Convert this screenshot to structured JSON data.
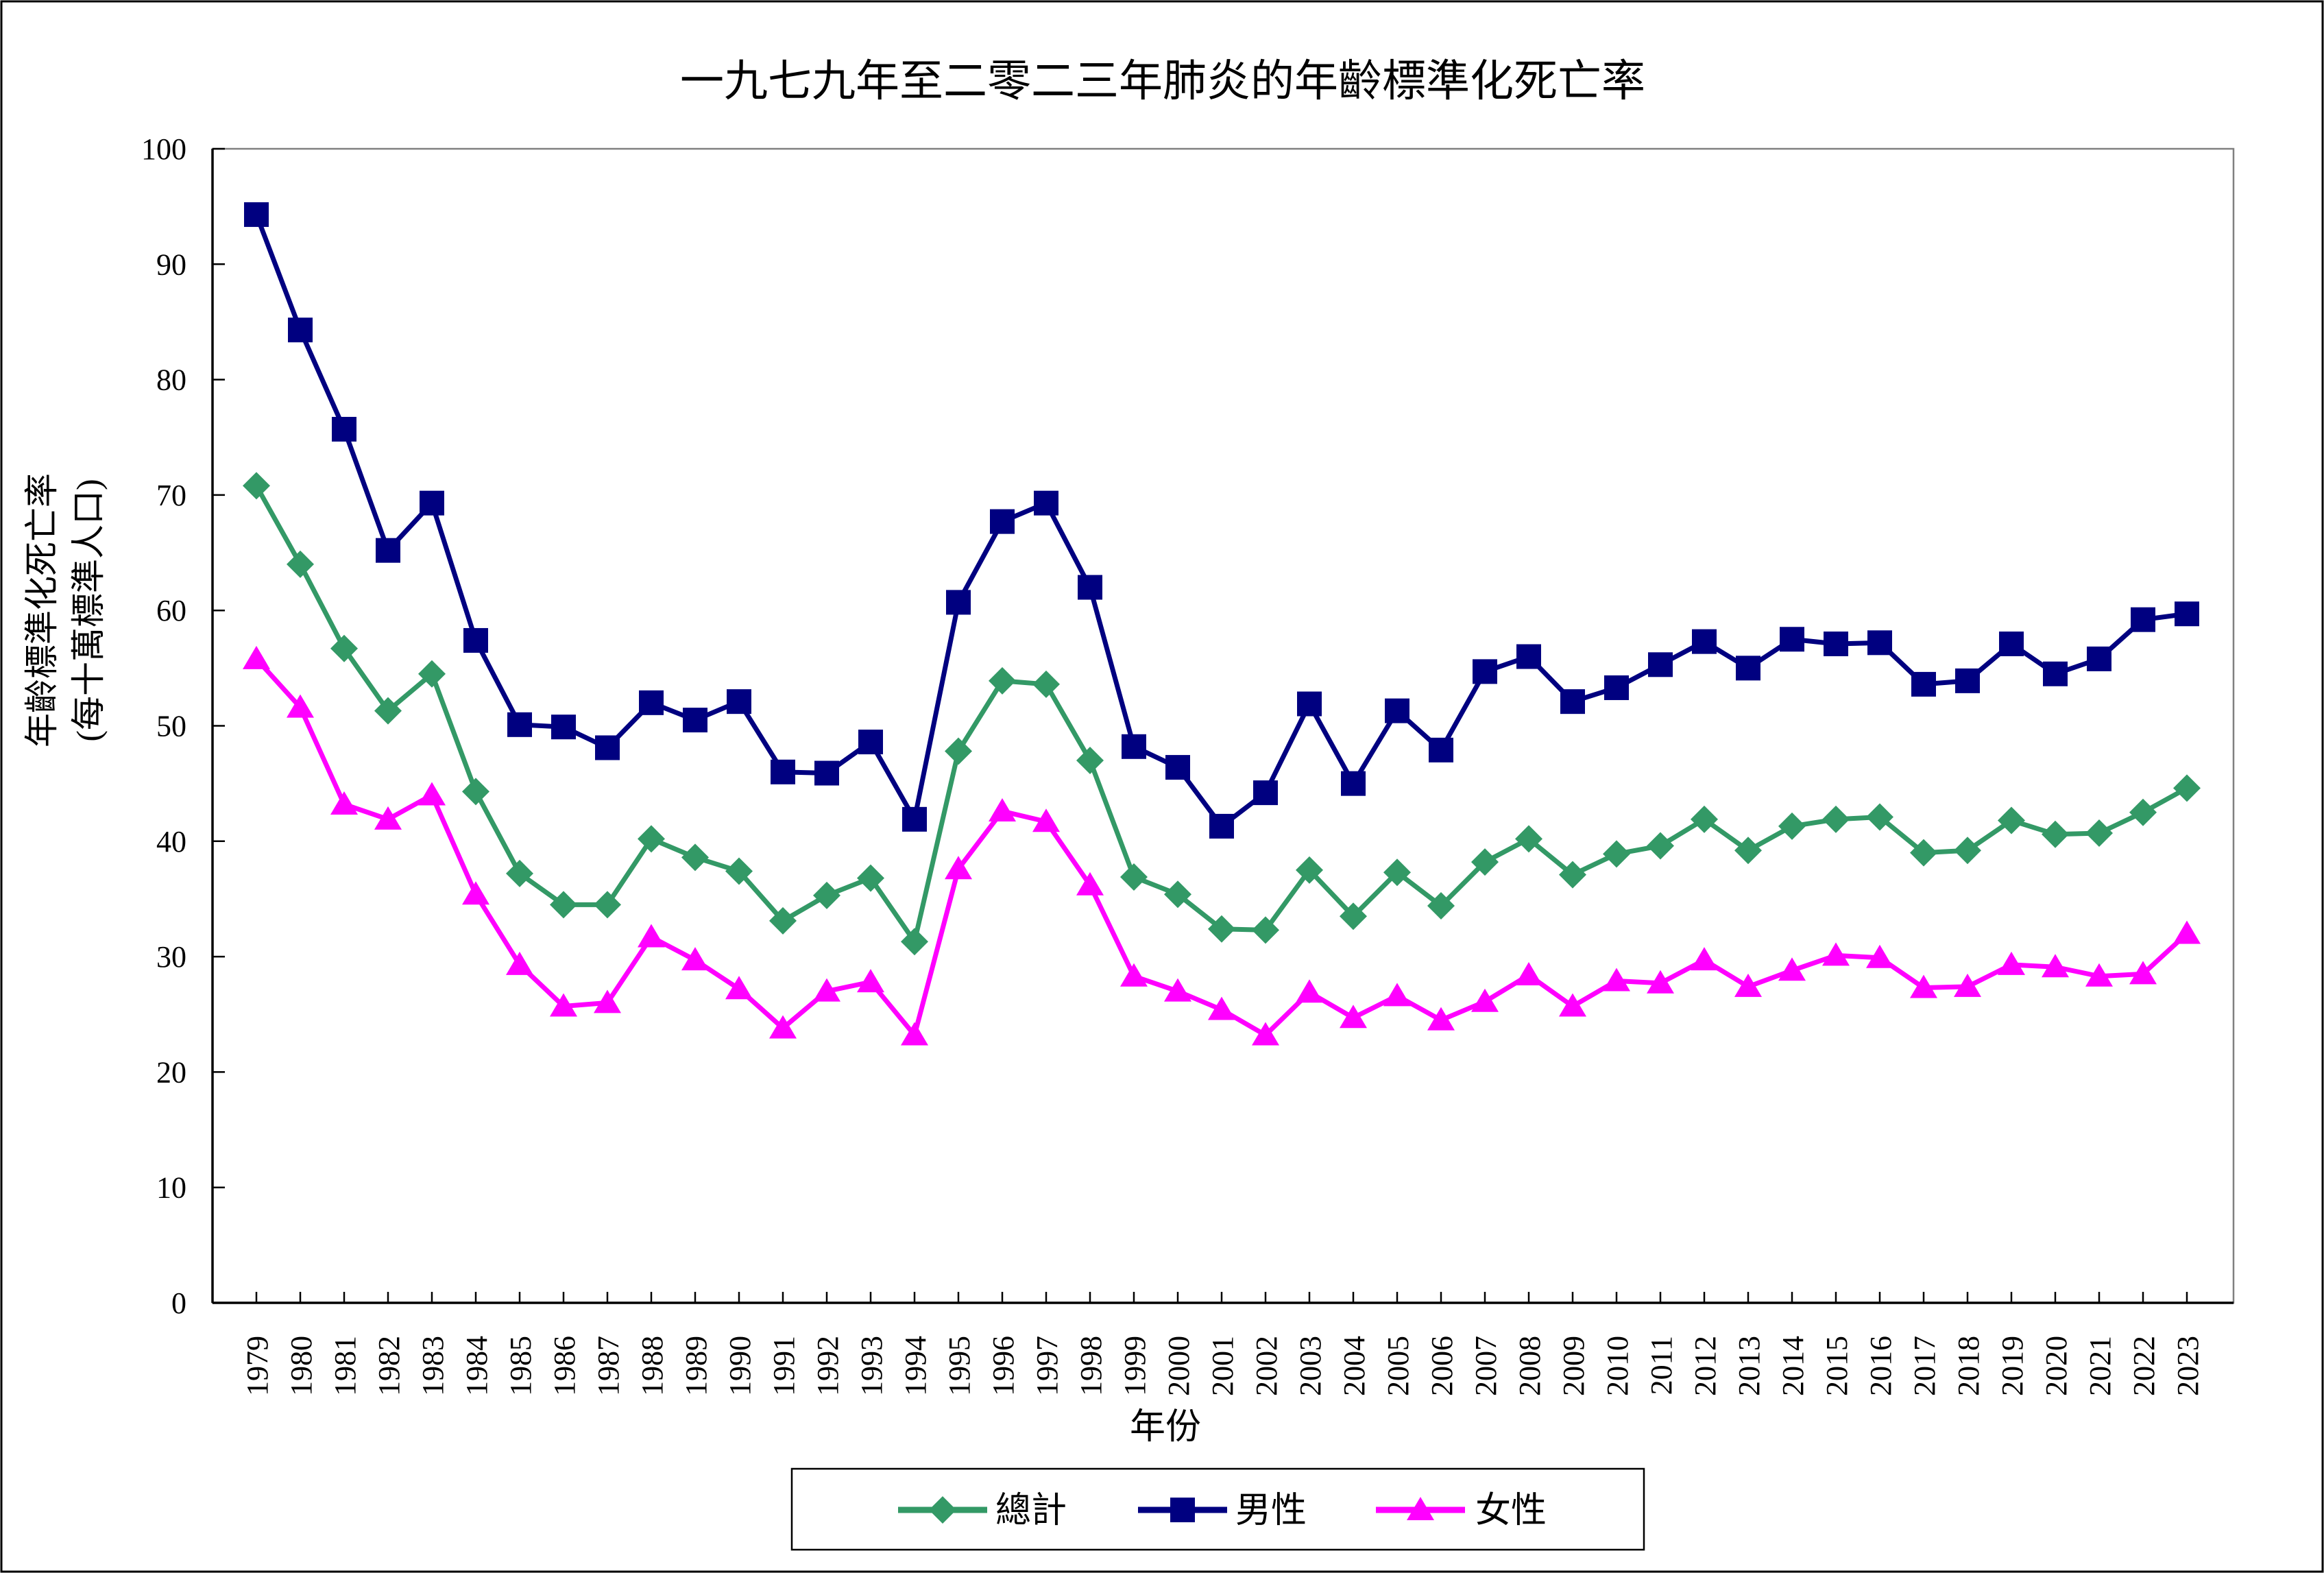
{
  "title": "一九七九年至二零二三年肺炎的年齡標準化死亡率",
  "y_axis": {
    "title_line1": "年齡標準化死亡率",
    "title_line2": "(每十萬標準人口)",
    "min": 0,
    "max": 100,
    "tick_interval": 10,
    "tick_labels": [
      "0",
      "10",
      "20",
      "30",
      "40",
      "50",
      "60",
      "70",
      "80",
      "90",
      "100"
    ]
  },
  "x_axis": {
    "title": "年份"
  },
  "legend": {
    "items": [
      {
        "label": "總計"
      },
      {
        "label": "男性"
      },
      {
        "label": "女性"
      }
    ]
  },
  "colors": {
    "total": "#339966",
    "male": "#000080",
    "female": "#FF00FF",
    "axis": "#000000",
    "plot_border": "#808080"
  },
  "chart_data": {
    "type": "line",
    "title": "一九七九年至二零二三年肺炎的年齡標準化死亡率",
    "xlabel": "年份",
    "ylabel": "年齡標準化死亡率 (每十萬標準人口)",
    "ylim": [
      0,
      100
    ],
    "grid": false,
    "legend_position": "bottom",
    "categories": [
      "1979",
      "1980",
      "1981",
      "1982",
      "1983",
      "1984",
      "1985",
      "1986",
      "1987",
      "1988",
      "1989",
      "1990",
      "1991",
      "1992",
      "1993",
      "1994",
      "1995",
      "1996",
      "1997",
      "1998",
      "1999",
      "2000",
      "2001",
      "2002",
      "2003",
      "2004",
      "2005",
      "2006",
      "2007",
      "2008",
      "2009",
      "2010",
      "2011",
      "2012",
      "2013",
      "2014",
      "2015",
      "2016",
      "2017",
      "2018",
      "2019",
      "2020",
      "2021",
      "2022",
      "2023"
    ],
    "series": [
      {
        "name": "總計",
        "color": "#339966",
        "marker": "diamond",
        "values": [
          70.8,
          64.0,
          56.7,
          51.3,
          54.5,
          44.3,
          37.2,
          34.5,
          34.5,
          40.2,
          38.6,
          37.4,
          33.1,
          35.3,
          36.8,
          31.3,
          47.8,
          53.9,
          53.6,
          47.0,
          36.9,
          35.4,
          32.4,
          32.3,
          37.5,
          33.5,
          37.3,
          34.4,
          38.2,
          40.2,
          37.1,
          38.9,
          39.6,
          41.9,
          39.2,
          41.3,
          41.9,
          42.1,
          39.0,
          39.2,
          41.8,
          40.6,
          40.7,
          42.5,
          44.6
        ]
      },
      {
        "name": "男性",
        "color": "#000080",
        "marker": "square",
        "values": [
          94.3,
          84.3,
          75.7,
          65.2,
          69.3,
          57.4,
          50.1,
          49.9,
          48.1,
          52.0,
          50.5,
          52.1,
          46.0,
          45.9,
          48.6,
          41.9,
          60.7,
          67.7,
          69.3,
          62.0,
          48.2,
          46.4,
          41.3,
          44.2,
          51.9,
          45.0,
          51.3,
          47.9,
          54.7,
          56.0,
          52.1,
          53.3,
          55.3,
          57.3,
          55.0,
          57.5,
          57.1,
          57.2,
          53.6,
          53.9,
          57.1,
          54.5,
          55.8,
          59.2,
          59.7
        ]
      },
      {
        "name": "女性",
        "color": "#FF00FF",
        "marker": "triangle",
        "values": [
          55.8,
          51.6,
          43.2,
          41.9,
          44.0,
          35.4,
          29.3,
          25.7,
          26.0,
          31.7,
          29.7,
          27.2,
          23.8,
          27.0,
          27.8,
          23.2,
          37.6,
          42.6,
          41.7,
          36.2,
          28.3,
          27.0,
          25.4,
          23.2,
          26.9,
          24.7,
          26.6,
          24.5,
          26.1,
          28.4,
          25.7,
          27.9,
          27.7,
          29.7,
          27.4,
          28.8,
          30.1,
          29.9,
          27.3,
          27.4,
          29.3,
          29.1,
          28.3,
          28.5,
          32.0
        ]
      }
    ]
  }
}
